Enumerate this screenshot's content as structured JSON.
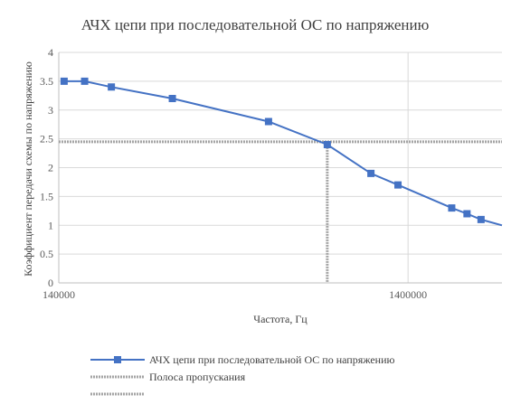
{
  "chart_data": {
    "type": "scatter",
    "title": "АЧХ цепи при последовательной ОС по напряжению",
    "xlabel": "Частота, Гц",
    "ylabel": "Коэффициент передачи схемы по напряжению",
    "x_scale": "log",
    "xlim": [
      140000,
      2600000
    ],
    "ylim": [
      0,
      4
    ],
    "x_ticks": [
      "140000",
      "1400000"
    ],
    "x_tick_values": [
      140000,
      1400000
    ],
    "y_ticks": [
      "0",
      "0.5",
      "1",
      "1.5",
      "2",
      "2.5",
      "3",
      "3.5",
      "4"
    ],
    "y_tick_values": [
      0,
      0.5,
      1,
      1.5,
      2,
      2.5,
      3,
      3.5,
      4
    ],
    "grid": true,
    "legend_position": "bottom",
    "series": [
      {
        "name": "АЧХ цепи при последовательной ОС по напряжению",
        "color": "#4472C4",
        "marker": "square",
        "x": [
          145000,
          166000,
          198000,
          296000,
          558000,
          822000,
          1096000,
          1310000,
          1867000,
          2065000,
          2265000
        ],
        "y": [
          3.5,
          3.5,
          3.4,
          3.2,
          2.8,
          2.4,
          1.9,
          1.7,
          1.3,
          1.2,
          1.1
        ],
        "line_x": [
          145000,
          166000,
          198000,
          296000,
          558000,
          822000,
          1096000,
          1310000,
          1867000,
          2065000,
          2265000,
          2600000
        ],
        "line_y": [
          3.5,
          3.5,
          3.4,
          3.2,
          2.8,
          2.4,
          1.9,
          1.7,
          1.3,
          1.2,
          1.1,
          1.0
        ]
      },
      {
        "name": "Полоса пропускания",
        "color": "#A5A5A5",
        "style": "dotted",
        "x": [
          140000,
          2600000
        ],
        "y": [
          2.45,
          2.45
        ]
      },
      {
        "name": "",
        "color": "#A5A5A5",
        "style": "dotted",
        "x": [
          822000,
          822000
        ],
        "y": [
          2.45,
          0
        ]
      }
    ]
  }
}
